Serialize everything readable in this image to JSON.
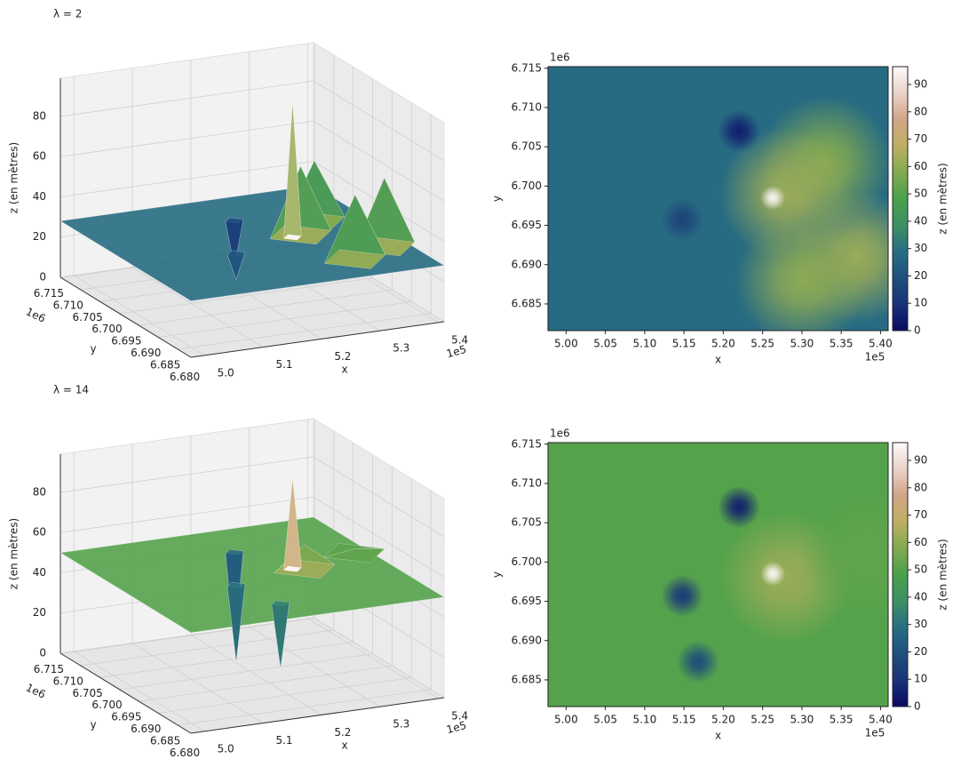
{
  "chart_data": [
    {
      "type": "surface3d",
      "title": "λ = 2",
      "xlabel": "x",
      "ylabel": "y",
      "zlabel": "z (en mètres)",
      "x_offset": "1e5",
      "y_offset": "1e6",
      "xlim": [
        497700,
        540970
      ],
      "ylim": [
        6681600,
        6715200
      ],
      "zlim": [
        0,
        99
      ],
      "xticks": [
        {
          "value": 500000,
          "label": "5.0"
        },
        {
          "value": 510000,
          "label": "5.1"
        },
        {
          "value": 520000,
          "label": "5.2"
        },
        {
          "value": 530000,
          "label": "5.3"
        },
        {
          "value": 540000,
          "label": "5.4"
        }
      ],
      "yticks": [
        {
          "value": 6680000,
          "label": "6.680"
        },
        {
          "value": 6685000,
          "label": "6.685"
        },
        {
          "value": 6690000,
          "label": "6.690"
        },
        {
          "value": 6695000,
          "label": "6.695"
        },
        {
          "value": 6700000,
          "label": "6.700"
        },
        {
          "value": 6705000,
          "label": "6.705"
        },
        {
          "value": 6710000,
          "label": "6.710"
        },
        {
          "value": 6715000,
          "label": "6.715"
        }
      ],
      "zticks": [
        0,
        20,
        40,
        60,
        80
      ],
      "colormap": "gist_earth",
      "clim": [
        0,
        96.5
      ],
      "base": 28,
      "points": {
        "x": [
          533000,
          537000,
          528000,
          530000,
          522000,
          514800,
          526300
        ],
        "y": [
          6703000,
          6691000,
          6699000,
          6688000,
          6707000,
          6695700,
          6698500
        ],
        "z": [
          58,
          62,
          62,
          60,
          5,
          15,
          95
        ]
      }
    },
    {
      "type": "heatmap",
      "xlabel": "x",
      "ylabel": "y",
      "x_offset": "1e5",
      "y_offset": "1e6",
      "colorbar_label": "z (en mètres)",
      "xlim": [
        497700,
        540970
      ],
      "ylim": [
        6681600,
        6715200
      ],
      "xticks": [
        {
          "value": 500000,
          "label": "5.00"
        },
        {
          "value": 505000,
          "label": "5.05"
        },
        {
          "value": 510000,
          "label": "5.10"
        },
        {
          "value": 515000,
          "label": "5.15"
        },
        {
          "value": 520000,
          "label": "5.20"
        },
        {
          "value": 525000,
          "label": "5.25"
        },
        {
          "value": 530000,
          "label": "5.30"
        },
        {
          "value": 535000,
          "label": "5.35"
        },
        {
          "value": 540000,
          "label": "5.40"
        }
      ],
      "yticks": [
        {
          "value": 6685000,
          "label": "6.685"
        },
        {
          "value": 6690000,
          "label": "6.690"
        },
        {
          "value": 6695000,
          "label": "6.695"
        },
        {
          "value": 6700000,
          "label": "6.700"
        },
        {
          "value": 6705000,
          "label": "6.705"
        },
        {
          "value": 6710000,
          "label": "6.710"
        },
        {
          "value": 6715000,
          "label": "6.715"
        }
      ],
      "colormap": "gist_earth",
      "clim": [
        0,
        96.5
      ],
      "cticks": [
        0,
        10,
        20,
        30,
        40,
        50,
        60,
        70,
        80,
        90
      ],
      "base": 28,
      "points": {
        "x": [
          533000,
          537000,
          528000,
          530000,
          522000,
          514800,
          526300
        ],
        "y": [
          6703000,
          6691000,
          6699000,
          6688000,
          6707000,
          6695700,
          6698500
        ],
        "z": [
          58,
          62,
          62,
          60,
          5,
          15,
          95
        ]
      }
    },
    {
      "type": "surface3d",
      "title": "λ = 14",
      "xlabel": "x",
      "ylabel": "y",
      "zlabel": "z (en mètres)",
      "x_offset": "1e5",
      "y_offset": "1e6",
      "xlim": [
        497700,
        540970
      ],
      "ylim": [
        6681600,
        6715200
      ],
      "zlim": [
        0,
        99
      ],
      "xticks": [
        {
          "value": 500000,
          "label": "5.0"
        },
        {
          "value": 510000,
          "label": "5.1"
        },
        {
          "value": 520000,
          "label": "5.2"
        },
        {
          "value": 530000,
          "label": "5.3"
        },
        {
          "value": 540000,
          "label": "5.4"
        }
      ],
      "yticks": [
        {
          "value": 6680000,
          "label": "6.680"
        },
        {
          "value": 6685000,
          "label": "6.685"
        },
        {
          "value": 6690000,
          "label": "6.690"
        },
        {
          "value": 6695000,
          "label": "6.695"
        },
        {
          "value": 6700000,
          "label": "6.700"
        },
        {
          "value": 6705000,
          "label": "6.705"
        },
        {
          "value": 6710000,
          "label": "6.710"
        },
        {
          "value": 6715000,
          "label": "6.715"
        }
      ],
      "zticks": [
        0,
        20,
        40,
        60,
        80
      ],
      "colormap": "gist_earth",
      "clim": [
        0,
        96.5
      ],
      "base": 50,
      "points": {
        "x": [
          528000,
          538500,
          522000,
          514800,
          516800,
          526300
        ],
        "y": [
          6698000,
          6701000,
          6707000,
          6695700,
          6687300,
          6698500
        ],
        "z": [
          62,
          52,
          5,
          12,
          18,
          95
        ]
      }
    },
    {
      "type": "heatmap",
      "xlabel": "x",
      "ylabel": "y",
      "x_offset": "1e5",
      "y_offset": "1e6",
      "colorbar_label": "z (en mètres)",
      "xlim": [
        497700,
        540970
      ],
      "ylim": [
        6681600,
        6715200
      ],
      "xticks": [
        {
          "value": 500000,
          "label": "5.00"
        },
        {
          "value": 505000,
          "label": "5.05"
        },
        {
          "value": 510000,
          "label": "5.10"
        },
        {
          "value": 515000,
          "label": "5.15"
        },
        {
          "value": 520000,
          "label": "5.20"
        },
        {
          "value": 525000,
          "label": "5.25"
        },
        {
          "value": 530000,
          "label": "5.30"
        },
        {
          "value": 535000,
          "label": "5.35"
        },
        {
          "value": 540000,
          "label": "5.40"
        }
      ],
      "yticks": [
        {
          "value": 6685000,
          "label": "6.685"
        },
        {
          "value": 6690000,
          "label": "6.690"
        },
        {
          "value": 6695000,
          "label": "6.695"
        },
        {
          "value": 6700000,
          "label": "6.700"
        },
        {
          "value": 6705000,
          "label": "6.705"
        },
        {
          "value": 6710000,
          "label": "6.710"
        },
        {
          "value": 6715000,
          "label": "6.715"
        }
      ],
      "colormap": "gist_earth",
      "clim": [
        0,
        96.5
      ],
      "cticks": [
        0,
        10,
        20,
        30,
        40,
        50,
        60,
        70,
        80,
        90
      ],
      "base": 50,
      "points": {
        "x": [
          528000,
          538500,
          522000,
          514800,
          516800,
          526300
        ],
        "y": [
          6698000,
          6701000,
          6707000,
          6695700,
          6687300,
          6698500
        ],
        "z": [
          62,
          52,
          5,
          12,
          18,
          95
        ]
      }
    }
  ]
}
